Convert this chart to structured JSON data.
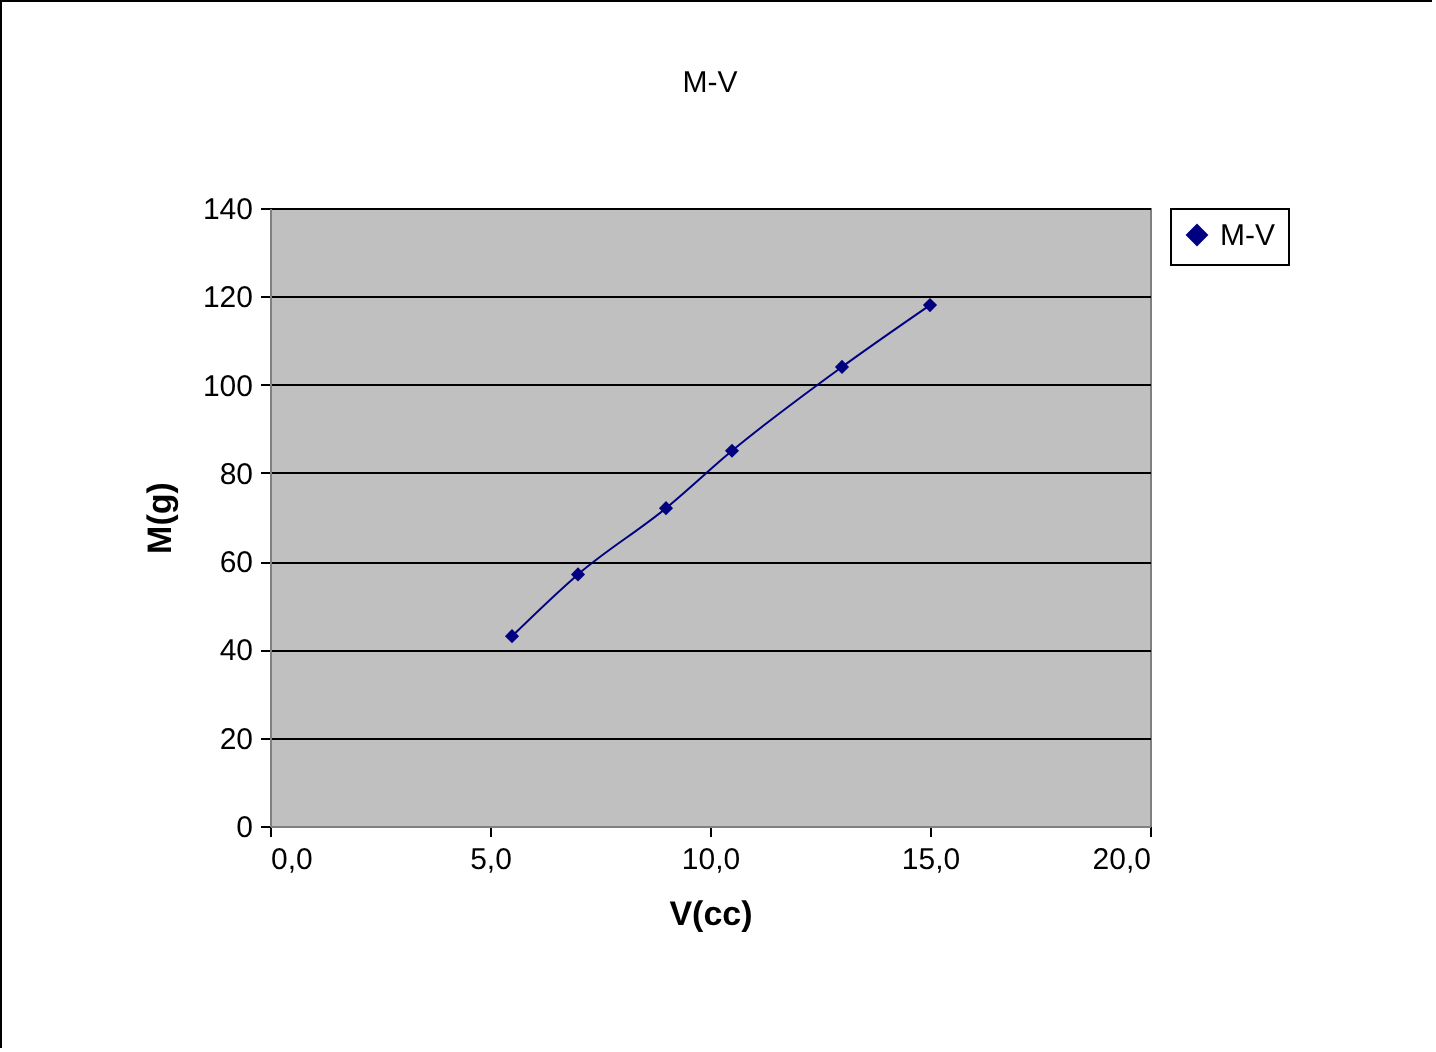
{
  "chart_data": {
    "type": "line",
    "title": "M-V",
    "xlabel": "V(cc)",
    "ylabel": "M(g)",
    "x": [
      5.5,
      7,
      9,
      10.5,
      13,
      15
    ],
    "series": [
      {
        "name": "M-V",
        "color": "#000080",
        "values": [
          43,
          57,
          72,
          85,
          104,
          118
        ]
      }
    ],
    "xlim": [
      0,
      20
    ],
    "xticks": [
      {
        "value": 0,
        "label": "0,0"
      },
      {
        "value": 5,
        "label": "5,0"
      },
      {
        "value": 10,
        "label": "10,0"
      },
      {
        "value": 15,
        "label": "15,0"
      },
      {
        "value": 20,
        "label": "20,0"
      }
    ],
    "ylim": [
      0,
      140
    ],
    "yticks": [
      0,
      20,
      40,
      60,
      80,
      100,
      120,
      140
    ],
    "grid": "y",
    "legend": "right",
    "marker": "diamond",
    "line_style": "solid"
  }
}
